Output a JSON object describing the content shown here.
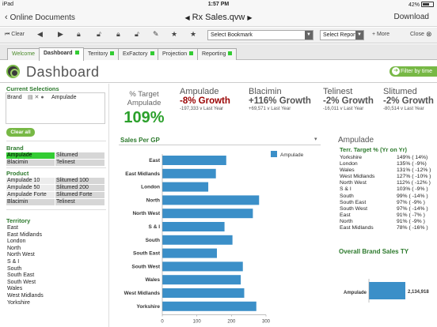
{
  "status_bar": {
    "carrier": "iPad",
    "time": "1:57 PM",
    "battery": "42%"
  },
  "nav": {
    "back_label": "Online Documents",
    "title": "Rx Sales.qvw",
    "download_label": "Download"
  },
  "toolbar": {
    "clear_label": "Clear",
    "bookmark_placeholder": "Select Bookmark",
    "report_placeholder": "Select Report",
    "more_label": "+ More",
    "close_label": "Close"
  },
  "tabs": [
    {
      "label": "Welcome",
      "active": false
    },
    {
      "label": "Dashboard",
      "active": true
    },
    {
      "label": "Territory",
      "active": false
    },
    {
      "label": "ExFactory",
      "active": false
    },
    {
      "label": "Projection",
      "active": false
    },
    {
      "label": "Reporting",
      "active": false
    }
  ],
  "header": {
    "title": "Dashboard",
    "filter_label": "Filter by time"
  },
  "current_selections": {
    "title": "Current Selections",
    "field": "Brand",
    "value": "Ampulade",
    "clear_label": "Clear all"
  },
  "brand": {
    "title": "Brand",
    "rows": [
      [
        "Ampulade",
        "Slitumed"
      ],
      [
        "Blacimin",
        "Telinest"
      ]
    ]
  },
  "product": {
    "title": "Product",
    "rows": [
      [
        "Ampulade 10",
        "Slitumed 100"
      ],
      [
        "Ampulade 50",
        "Slitumed 200"
      ],
      [
        "Ampulade Forte",
        "Slitumed Forte"
      ],
      [
        "Blacimin",
        "Telinest"
      ]
    ]
  },
  "territory": {
    "title": "Territory",
    "items": [
      "East",
      "East Midlands",
      "London",
      "North",
      "North West",
      "S & I",
      "South",
      "South East",
      "South West",
      "Wales",
      "West Midlands",
      "Yorkshire"
    ]
  },
  "kpi_target": {
    "label_line1": "% Target",
    "label_line2": "Ampulade",
    "value": "109%"
  },
  "kpis": [
    {
      "name": "Ampulade",
      "growth": "-8% Growth",
      "detail": "-197,333 v Last Year",
      "color": "#990000"
    },
    {
      "name": "Blacimin",
      "growth": "+116% Growth",
      "detail": "+69,571 v Last Year",
      "color": "#222222"
    },
    {
      "name": "Telinest",
      "growth": "-2% Growth",
      "detail": "-16,011 v Last Year",
      "color": "#222222"
    },
    {
      "name": "Slitumed",
      "growth": "-2% Growth",
      "detail": "-80,514 v Last Year",
      "color": "#222222"
    }
  ],
  "chart_data": [
    {
      "type": "bar",
      "orientation": "horizontal",
      "title": "Sales Per GP",
      "categories": [
        "East",
        "East Midlands",
        "London",
        "North",
        "North West",
        "S & I",
        "South",
        "South East",
        "South West",
        "Wales",
        "West Midlands",
        "Yorkshire"
      ],
      "series": [
        {
          "name": "Ampulade",
          "values": [
            185,
            155,
            133,
            280,
            262,
            180,
            203,
            158,
            233,
            227,
            237,
            272
          ],
          "color": "#3b8fc8"
        }
      ],
      "xticks": [
        0,
        100,
        200,
        300
      ],
      "xlim": [
        0,
        300
      ],
      "legend": "top-right"
    },
    {
      "type": "bar",
      "orientation": "horizontal",
      "title": "Overall Brand Sales TY",
      "categories": [
        "Ampulade"
      ],
      "series": [
        {
          "values": [
            2134918
          ],
          "labels": [
            "2,134,918"
          ],
          "color": "#3b8fc8"
        }
      ]
    }
  ],
  "territory_target": {
    "title": "Ampulade",
    "subtitle": "Terr. Target % (Yr on Yr)",
    "rows": [
      {
        "name": "Yorkshire",
        "value": "149% ( 14%)"
      },
      {
        "name": "London",
        "value": "135% ( -9%)"
      },
      {
        "name": "Wales",
        "value": "131% ( -12% )"
      },
      {
        "name": "West Midlands",
        "value": "127% ( -10% )"
      },
      {
        "name": "North West",
        "value": "112% ( -12% )"
      },
      {
        "name": "S & I",
        "value": "103% ( -9% )"
      },
      {
        "name": "South",
        "value": "99% ( -14% )"
      },
      {
        "name": "South East",
        "value": "97% ( -9% )"
      },
      {
        "name": "South West",
        "value": "97% ( -14% )"
      },
      {
        "name": "East",
        "value": "91% ( -7% )"
      },
      {
        "name": "North",
        "value": "91% ( -9% )"
      },
      {
        "name": "East Midlands",
        "value": "78% ( -16% )"
      }
    ]
  }
}
